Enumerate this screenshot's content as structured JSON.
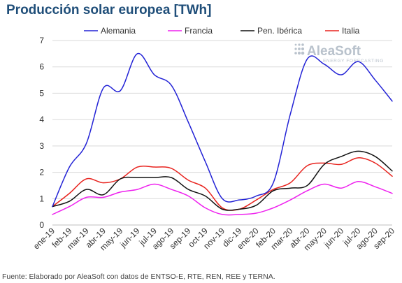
{
  "title": "Producción solar europea [TWh]",
  "footer": "Fuente: Elaborado por AleaSoft con datos de ENTSO-E, RTE, REN, REE y TERNA.",
  "watermark": {
    "brand": "AleaSoft",
    "tagline": "ENERGY FORECASTING"
  },
  "colors": {
    "alemania": "#2323d6",
    "francia": "#ee22ee",
    "iberica": "#111111",
    "italia": "#e8231e",
    "grid": "#d9d9d9",
    "axis_text": "#333333",
    "title": "#1f4e79"
  },
  "chart_data": {
    "type": "line",
    "title": "Producción solar europea [TWh]",
    "xlabel": "",
    "ylabel": "",
    "ylim": [
      0,
      7
    ],
    "yticks": [
      "0",
      "1",
      "2",
      "3",
      "4",
      "5",
      "6",
      "7"
    ],
    "grid": true,
    "legend_position": "top",
    "categories": [
      "ene-19",
      "feb-19",
      "mar-19",
      "abr-19",
      "may-19",
      "jun-19",
      "jul-19",
      "ago-19",
      "sep-19",
      "oct-19",
      "nov-19",
      "dic-19",
      "ene-20",
      "feb-20",
      "mar-20",
      "abr-20",
      "may-20",
      "jun-20",
      "jul-20",
      "ago-20",
      "sep-20"
    ],
    "series": [
      {
        "name": "Alemania",
        "color": "#2323d6",
        "values": [
          0.7,
          2.2,
          3.1,
          5.2,
          5.1,
          6.5,
          5.7,
          5.3,
          3.9,
          2.4,
          1.0,
          0.95,
          1.1,
          1.6,
          4.2,
          6.3,
          6.1,
          5.7,
          6.2,
          5.5,
          4.7
        ]
      },
      {
        "name": "Francia",
        "color": "#ee22ee",
        "values": [
          0.4,
          0.7,
          1.05,
          1.05,
          1.25,
          1.35,
          1.55,
          1.35,
          1.1,
          0.65,
          0.4,
          0.4,
          0.45,
          0.65,
          0.95,
          1.3,
          1.55,
          1.4,
          1.65,
          1.45,
          1.2
        ]
      },
      {
        "name": "Pen. Ibérica",
        "color": "#111111",
        "values": [
          0.7,
          0.9,
          1.35,
          1.15,
          1.75,
          1.8,
          1.8,
          1.8,
          1.35,
          1.1,
          0.6,
          0.6,
          0.75,
          1.3,
          1.4,
          1.5,
          2.3,
          2.6,
          2.8,
          2.6,
          2.05
        ]
      },
      {
        "name": "Italia",
        "color": "#e8231e",
        "values": [
          0.7,
          1.2,
          1.75,
          1.6,
          1.75,
          2.2,
          2.2,
          2.15,
          1.7,
          1.4,
          0.65,
          0.6,
          0.95,
          1.35,
          1.6,
          2.25,
          2.35,
          2.3,
          2.55,
          2.35,
          1.85
        ]
      }
    ]
  }
}
